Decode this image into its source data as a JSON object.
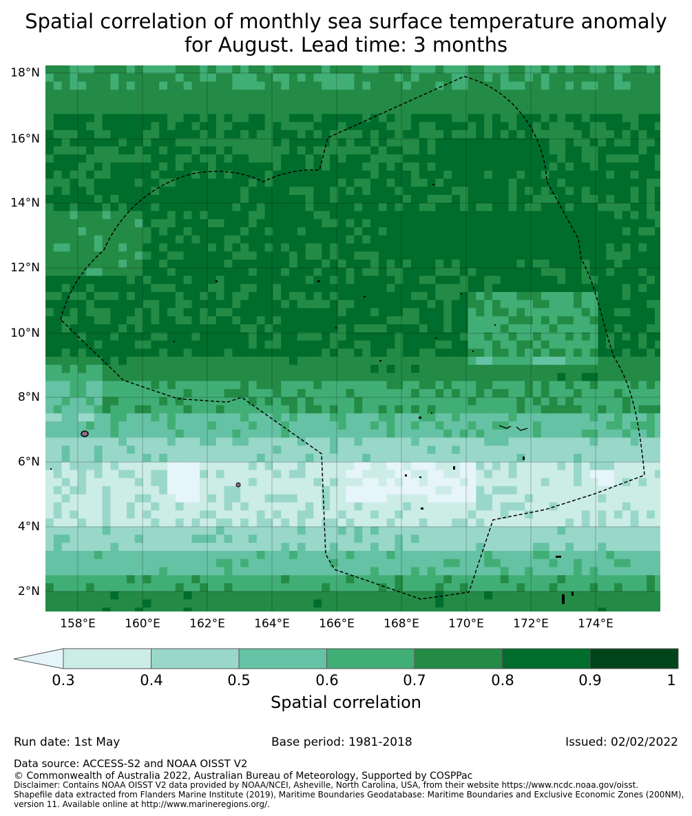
{
  "title": {
    "line1": "Spatial correlation of monthly sea surface temperature anomaly",
    "line2": "for August. Lead time: 3 months"
  },
  "map": {
    "lat_ticks": [
      "18°N",
      "16°N",
      "14°N",
      "12°N",
      "10°N",
      "8°N",
      "6°N",
      "4°N",
      "2°N"
    ],
    "lon_ticks": [
      "158°E",
      "160°E",
      "162°E",
      "164°E",
      "166°E",
      "168°E",
      "170°E",
      "172°E",
      "174°E"
    ],
    "extent": {
      "lon_min": 157,
      "lon_max": 176,
      "lat_min": 1.4,
      "lat_max": 18.2
    },
    "eez_boundary": "dashed-black",
    "land_color": "#000000"
  },
  "colorbar": {
    "label": "Spatial correlation",
    "ticks": [
      "0.3",
      "0.4",
      "0.5",
      "0.6",
      "0.7",
      "0.8",
      "0.9",
      "1"
    ],
    "bins": [
      {
        "range": "<0.3",
        "color": "#e5f5f9"
      },
      {
        "range": "0.3-0.4",
        "color": "#ccece6"
      },
      {
        "range": "0.4-0.5",
        "color": "#99d8c9"
      },
      {
        "range": "0.5-0.6",
        "color": "#66c2a4"
      },
      {
        "range": "0.6-0.7",
        "color": "#41ae76"
      },
      {
        "range": "0.7-0.8",
        "color": "#238b45"
      },
      {
        "range": "0.8-0.9",
        "color": "#006d2c"
      },
      {
        "range": "0.9-1",
        "color": "#00441b"
      }
    ]
  },
  "footer": {
    "run_date": "Run date: 1st May",
    "base_period": "Base period: 1981-2018",
    "issued": "Issued: 02/02/2022",
    "data_source": "Data source: ACCESS-S2 and NOAA OISST V2",
    "copyright": "© Commonwealth of Australia 2022, Australian Bureau of Meteorology, Supported by COSPPac",
    "disclaimer_line1": "Disclaimer: Contains NOAA OISST V2 data provided by NOAA/NCEI, Asheville, North Carolina, USA, from their website https://www.ncdc.noaa.gov/oisst.",
    "disclaimer_line2": "Shapefile data extracted from Flanders Marine Institute (2019), Maritime Boundaries Geodatabase: Maritime Boundaries and Exclusive Economic Zones (200NM),",
    "disclaimer_line3": "version 11. Available online at http://www.marineregions.org/."
  }
}
